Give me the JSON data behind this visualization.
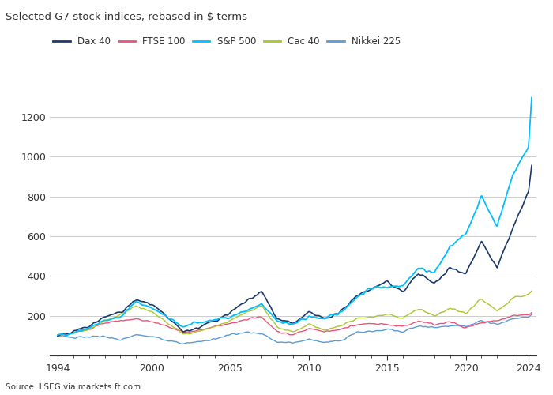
{
  "title": "Selected G7 stock indices, rebased in $ terms",
  "source": "Source: LSEG via markets.ft.com",
  "legend": [
    "Dax 40",
    "FTSE 100",
    "S&P 500",
    "Cac 40",
    "Nikkei 225"
  ],
  "colors": {
    "Dax 40": "#1a3a6b",
    "FTSE 100": "#e8547a",
    "S&P 500": "#00bfff",
    "Cac 40": "#a8c832",
    "Nikkei 225": "#5b9bd5"
  },
  "xlim": [
    1993.5,
    2024.5
  ],
  "ylim": [
    0,
    1350
  ],
  "yticks": [
    200,
    400,
    600,
    800,
    1000,
    1200
  ],
  "xticks": [
    1994,
    2000,
    2005,
    2010,
    2015,
    2020,
    2024
  ],
  "background": "#ffffff",
  "plot_bg": "#ffffff",
  "text_color": "#333333",
  "grid_color": "#cccccc",
  "title_color": "#333333",
  "linewidth": 1.0
}
